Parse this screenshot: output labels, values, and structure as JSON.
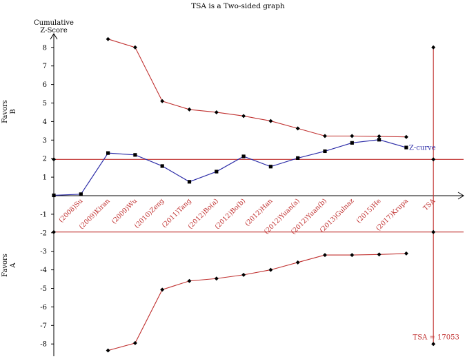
{
  "chart_data": {
    "type": "line",
    "title": "TSA is a Two-sided graph",
    "ylabel": "Cumulative Z-Score",
    "ylim": [
      -8.6,
      8.6
    ],
    "yticks": [
      -8,
      -7,
      -6,
      -5,
      -4,
      -3,
      -2,
      -1,
      1,
      2,
      3,
      4,
      5,
      6,
      7,
      8
    ],
    "categories": [
      "(2008)Su",
      "(2009)Kiran",
      "(2009)Wu",
      "(2010)Zeng",
      "(2011)Tang",
      "(2012)Bo(a)",
      "(2012)Bo(b)",
      "(2012)Han",
      "(2012)Yuan(a)",
      "(2012)Yuan(b)",
      "(2013)Gulnaz",
      "(2015)He",
      "(2017)Krupa",
      "TSA"
    ],
    "region_labels": {
      "upper_line1": "Favors",
      "upper_line2": "B",
      "lower_line1": "Favors",
      "lower_line2": "A"
    },
    "z_curve": {
      "name": "Z-curve",
      "values": [
        0.02,
        0.08,
        2.3,
        2.2,
        1.6,
        0.75,
        1.3,
        2.12,
        1.57,
        2.03,
        2.4,
        2.85,
        3.02,
        2.6
      ]
    },
    "upper_boundary": {
      "x_index": [
        2,
        3,
        4,
        5,
        6,
        7,
        8,
        9,
        10,
        11,
        12,
        13
      ],
      "values": [
        8.45,
        8.0,
        5.1,
        4.65,
        4.5,
        4.3,
        4.03,
        3.63,
        3.22,
        3.22,
        3.2,
        3.17
      ]
    },
    "lower_boundary": {
      "x_index": [
        2,
        3,
        4,
        5,
        6,
        7,
        8,
        9,
        10,
        11,
        12,
        13
      ],
      "values": [
        -8.35,
        -7.95,
        -5.07,
        -4.6,
        -4.47,
        -4.27,
        -4.0,
        -3.6,
        -3.2,
        -3.2,
        -3.17,
        -3.12
      ]
    },
    "conventional_boundaries": [
      1.96,
      -1.96
    ],
    "tsa_line": {
      "x_index": 14,
      "marker_values": [
        8.0,
        1.96,
        -1.96,
        -8.0
      ],
      "label": "TSA = 17053"
    },
    "colors": {
      "z_curve": "#2e2ea8",
      "boundary": "#c0302f",
      "axis": "#000000",
      "markers": "#000000"
    }
  }
}
